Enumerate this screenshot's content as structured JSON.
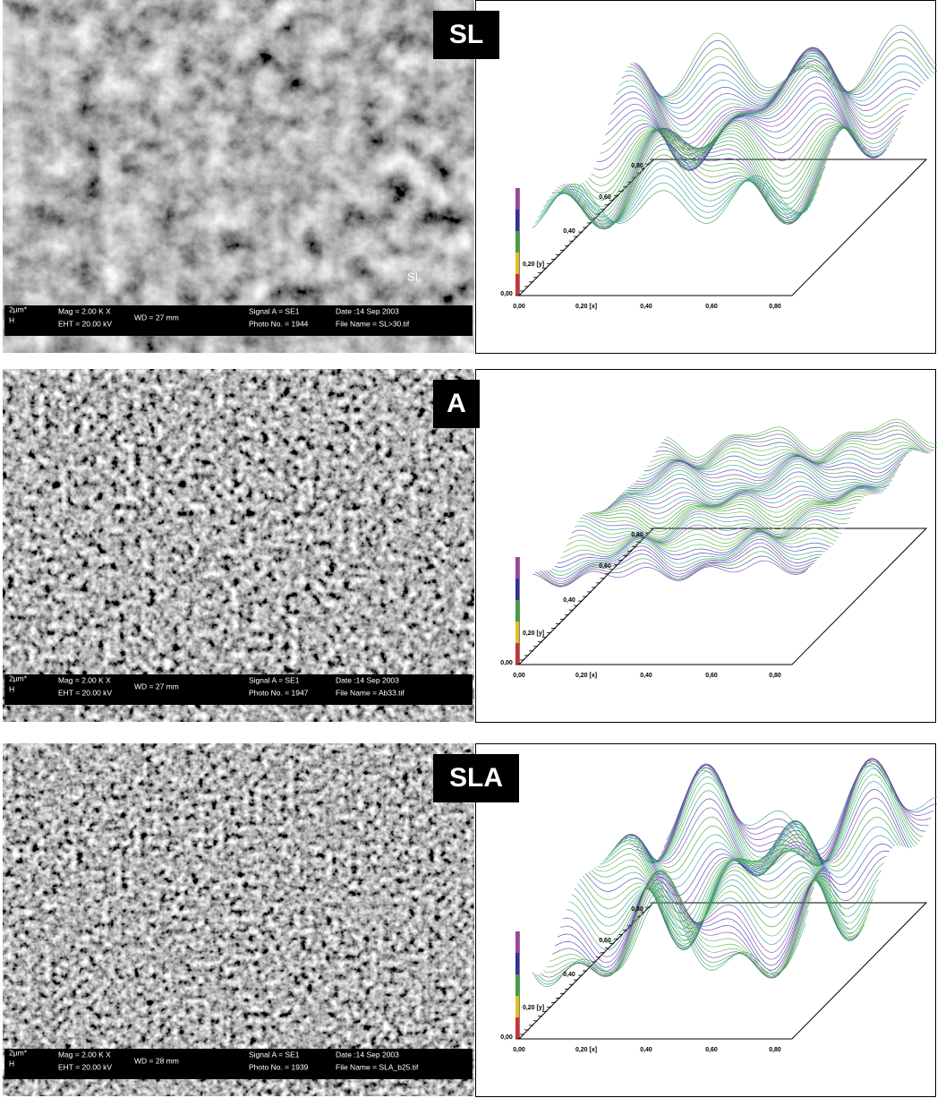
{
  "panels": [
    {
      "label": "SL",
      "image_label": "SL",
      "scale": "2µm*",
      "scale_mark": "H",
      "info": [
        "Mag = 2.00 K X",
        "EHT = 20.00 kV",
        "WD = 27 mm",
        "Signal A = SE1",
        "Photo No. = 1944",
        "Date :14 Sep 2003",
        "File Name = SL>30.tif"
      ]
    },
    {
      "label": "A",
      "scale": "2µm*",
      "scale_mark": "H",
      "info": [
        "Mag = 2.00 K X",
        "EHT = 20.00 kV",
        "WD = 27 mm",
        "Signal A = SE1",
        "Photo No. = 1947",
        "Date :14 Sep 2003",
        "File Name = Ab33.tif"
      ]
    },
    {
      "label": "SLA",
      "scale": "2µm*",
      "scale_mark": "H",
      "info": [
        "Mag = 2.00 K X",
        "EHT = 20.00 kV",
        "WD = 28 mm",
        "Signal A = SE1",
        "Photo No. = 1939",
        "Date :14 Sep 2003",
        "File Name = SLA_b25.tif"
      ]
    }
  ],
  "plot_axes": {
    "x": [
      "0,00",
      "0,20 [x]",
      "0,40",
      "0,60",
      "0,80"
    ],
    "y": [
      "0,00",
      "0,20 [y]",
      "0,40",
      "0,60",
      "0,80"
    ]
  }
}
